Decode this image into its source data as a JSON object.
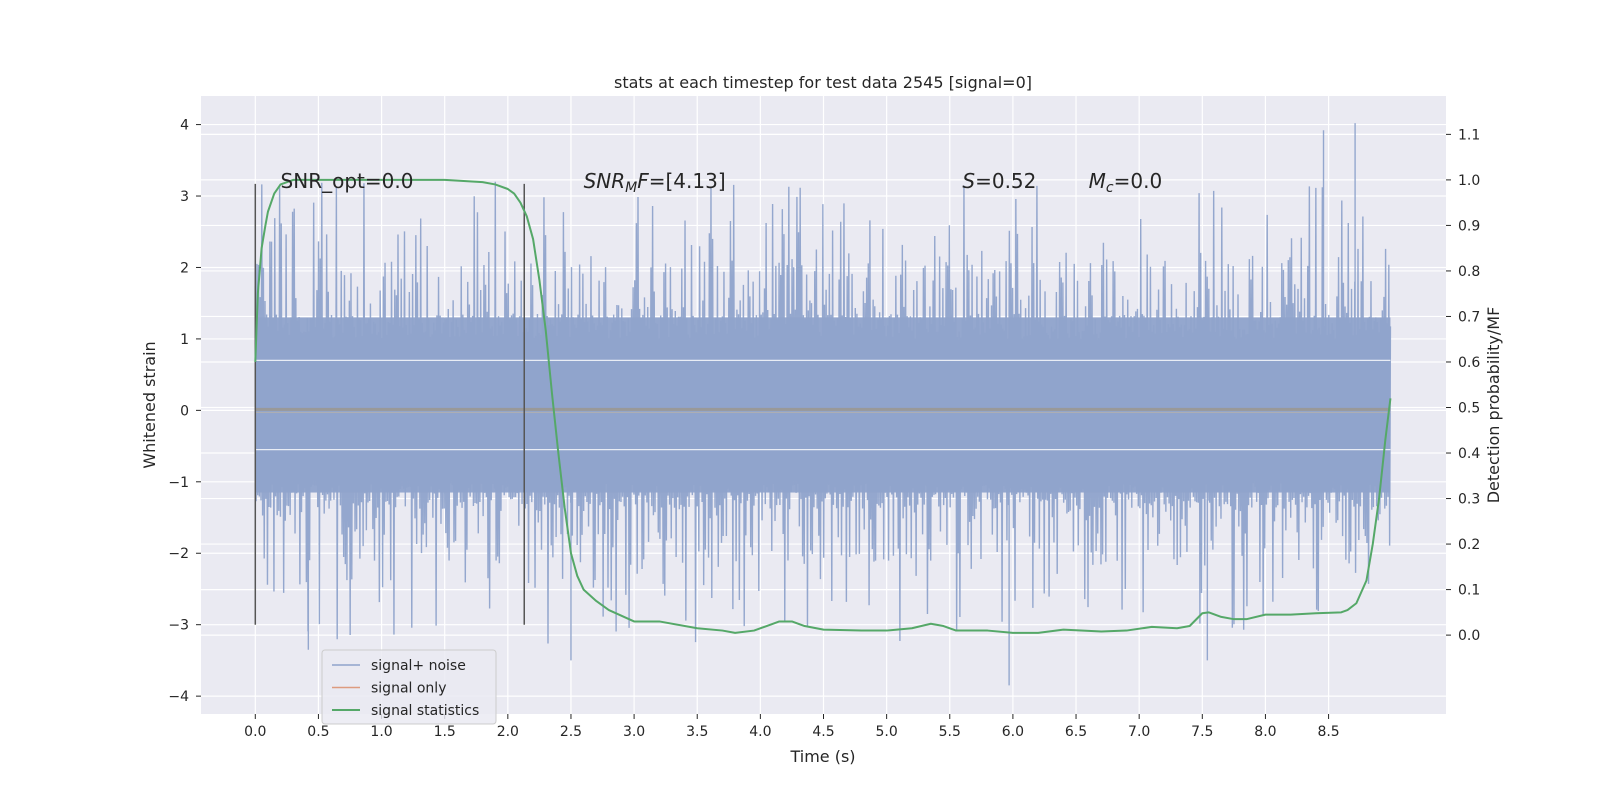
{
  "chart_data": {
    "type": "line",
    "title": "stats at each timestep for test data 2545 [signal=0]",
    "xlabel": "Time (s)",
    "ylabel": "Whitened strain",
    "y2label": "Detection probability/MF",
    "xlim": [
      -0.43,
      9.43
    ],
    "ylim": [
      -4.25,
      4.4
    ],
    "y2lim": [
      -0.1733,
      1.1843
    ],
    "x_ticks": [
      0.0,
      0.5,
      1.0,
      1.5,
      2.0,
      2.5,
      3.0,
      3.5,
      4.0,
      4.5,
      5.0,
      5.5,
      6.0,
      6.5,
      7.0,
      7.5,
      8.0,
      8.5
    ],
    "x_tick_labels": [
      "0.0",
      "0.5",
      "1.0",
      "1.5",
      "2.0",
      "2.5",
      "3.0",
      "3.5",
      "4.0",
      "4.5",
      "5.0",
      "5.5",
      "6.0",
      "6.5",
      "7.0",
      "7.5",
      "8.0",
      "8.5"
    ],
    "y_ticks": [
      4,
      3,
      2,
      1,
      0,
      -1,
      -2,
      -3,
      -4
    ],
    "y_tick_labels": [
      "4",
      "3",
      "2",
      "1",
      "0",
      "−1",
      "−2",
      "−3",
      "−4"
    ],
    "y2_ticks": [
      1.1,
      1.0,
      0.9,
      0.8,
      0.7,
      0.6,
      0.5,
      0.4,
      0.3,
      0.2,
      0.1,
      0.0
    ],
    "y2_tick_labels": [
      "1.1",
      "1.0",
      "0.9",
      "0.8",
      "0.7",
      "0.6",
      "0.5",
      "0.4",
      "0.3",
      "0.2",
      "0.1",
      "0.0"
    ],
    "grid": true,
    "legend_placement": "lower-left",
    "series": [
      {
        "name": "signal+ noise",
        "axis": "left",
        "color": "#8fa3cb",
        "x_range": [
          0.0,
          8.99
        ],
        "band": [
          -1.15,
          1.3
        ],
        "envelope_peak": [
          3.0,
          -3.6
        ],
        "tallest_spikes": [
          {
            "x": 8.46,
            "y": 3.92
          },
          {
            "x": 8.71,
            "y": 4.02
          },
          {
            "x": 5.97,
            "y": -3.85
          },
          {
            "x": 7.54,
            "y": -3.5
          },
          {
            "x": 2.5,
            "y": -3.5
          },
          {
            "x": 0.42,
            "y": -3.35
          }
        ]
      },
      {
        "name": "signal only",
        "axis": "left",
        "color": "#dd9b7f",
        "x": [
          0.0,
          8.99
        ],
        "y": [
          0.0,
          0.0
        ]
      },
      {
        "name": "signal statistics",
        "axis": "right",
        "color": "#55a868",
        "x": [
          0.0,
          0.02,
          0.05,
          0.08,
          0.1,
          0.15,
          0.2,
          0.3,
          0.5,
          1.0,
          1.5,
          1.8,
          1.9,
          2.0,
          2.05,
          2.1,
          2.15,
          2.2,
          2.25,
          2.3,
          2.35,
          2.4,
          2.45,
          2.5,
          2.55,
          2.6,
          2.7,
          2.8,
          3.0,
          3.2,
          3.5,
          3.7,
          3.8,
          3.95,
          4.05,
          4.15,
          4.25,
          4.35,
          4.5,
          4.8,
          5.0,
          5.2,
          5.35,
          5.45,
          5.55,
          5.8,
          6.0,
          6.2,
          6.4,
          6.7,
          6.9,
          7.1,
          7.3,
          7.4,
          7.5,
          7.55,
          7.65,
          7.75,
          7.85,
          8.0,
          8.2,
          8.4,
          8.6,
          8.65,
          8.72,
          8.8,
          8.85,
          8.9,
          8.95,
          8.99
        ],
        "y": [
          0.6,
          0.75,
          0.85,
          0.9,
          0.93,
          0.97,
          0.99,
          1.0,
          1.0,
          1.0,
          1.0,
          0.995,
          0.99,
          0.98,
          0.97,
          0.95,
          0.92,
          0.87,
          0.78,
          0.67,
          0.53,
          0.4,
          0.28,
          0.18,
          0.13,
          0.1,
          0.075,
          0.055,
          0.03,
          0.03,
          0.015,
          0.01,
          0.005,
          0.01,
          0.02,
          0.03,
          0.03,
          0.02,
          0.012,
          0.01,
          0.01,
          0.015,
          0.025,
          0.02,
          0.01,
          0.01,
          0.005,
          0.005,
          0.012,
          0.008,
          0.01,
          0.018,
          0.015,
          0.02,
          0.048,
          0.05,
          0.04,
          0.035,
          0.035,
          0.045,
          0.045,
          0.048,
          0.05,
          0.055,
          0.07,
          0.12,
          0.2,
          0.3,
          0.43,
          0.52
        ]
      }
    ],
    "vertical_markers": {
      "color": "#555555",
      "x": [
        0.0,
        2.13
      ],
      "y_range": [
        -3.0,
        3.17
      ]
    },
    "annotations": [
      {
        "parts": [
          {
            "text": "SNR_opt=0.0"
          }
        ],
        "x": 0.2,
        "y": 3.25
      },
      {
        "parts": [
          {
            "text": "SNR",
            "italic": true
          },
          {
            "text": "M",
            "italic": true,
            "sub": true
          },
          {
            "text": "F",
            "italic": true
          },
          {
            "text": "=[4.13]"
          }
        ],
        "x": 2.6,
        "y": 3.25
      },
      {
        "parts": [
          {
            "text": "S",
            "italic": true
          },
          {
            "text": "=0.52"
          }
        ],
        "x": 5.6,
        "y": 3.25
      },
      {
        "parts": [
          {
            "text": "M",
            "italic": true
          },
          {
            "text": "c",
            "italic": true,
            "sub": true
          },
          {
            "text": "=0.0"
          }
        ],
        "x": 6.6,
        "y": 3.25
      }
    ]
  }
}
